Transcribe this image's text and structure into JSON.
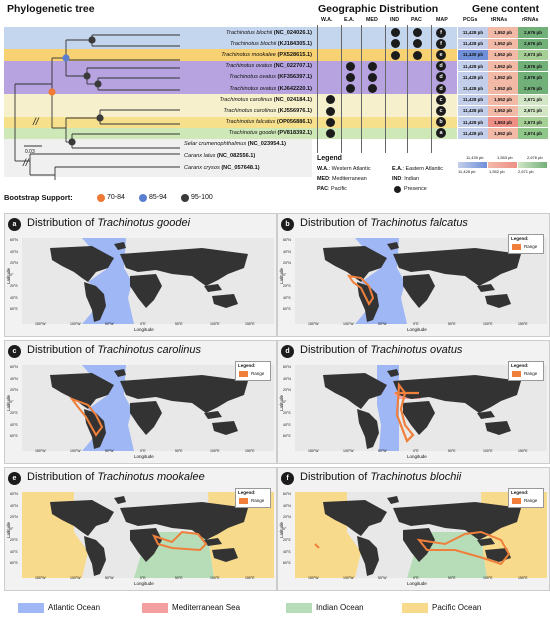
{
  "header": {
    "tree_title": "Phylogenetic tree",
    "geo_title": "Geographic Distribution",
    "gene_title": "Gene content"
  },
  "columns": {
    "wa": "W.A.",
    "ea": "E.A.",
    "med": "MED",
    "ind": "IND",
    "pac": "PAC",
    "map": "MAP",
    "pcgs": "PCGs",
    "trnas": "tRNAs",
    "rrnas": "rRNAs"
  },
  "taxa": [
    {
      "name": "Trachinotus blochii",
      "acc": "(NC_024026.1)",
      "band": "#c4d5ee",
      "pcgs": "11,428 pb",
      "pcg_color": "#c3cfea",
      "trnas": "1,552 pb",
      "trna_color": "#f3b9a7",
      "rrnas": "2,676 pb",
      "rrna_color": "#72b07a",
      "wa": false,
      "ea": false,
      "med": false,
      "ind": true,
      "pac": true,
      "map": "f"
    },
    {
      "name": "Trachinotus blochii",
      "acc": "(KJ184305.1)",
      "band": "#c4d5ee",
      "pcgs": "11,428 pb",
      "pcg_color": "#c3cfea",
      "trnas": "1,552 pb",
      "trna_color": "#f3b9a7",
      "rrnas": "2,676 pb",
      "rrna_color": "#72b07a",
      "wa": false,
      "ea": false,
      "med": false,
      "ind": true,
      "pac": true,
      "map": "f"
    },
    {
      "name": "Trachinotus mookalee",
      "acc": "(PX528615.1)",
      "band": "#f7d172",
      "pcgs": "11,430 pb",
      "pcg_color": "#6f8fd8",
      "trnas": "1,552 pb",
      "trna_color": "#f3b9a7",
      "rrnas": "2,673 pb",
      "rrna_color": "#a6cf95",
      "wa": false,
      "ea": false,
      "med": false,
      "ind": true,
      "pac": true,
      "map": "e"
    },
    {
      "name": "Trachinotus ovatus",
      "acc": "(NC_022707.1)",
      "band": "#b6a3e0",
      "pcgs": "11,428 pb",
      "pcg_color": "#c3cfea",
      "trnas": "1,552 pb",
      "trna_color": "#f3b9a7",
      "rrnas": "2,676 pb",
      "rrna_color": "#72b07a",
      "wa": false,
      "ea": true,
      "med": true,
      "ind": false,
      "pac": false,
      "map": "d"
    },
    {
      "name": "Trachinotus ovatus",
      "acc": "(KF356397.1)",
      "band": "#b6a3e0",
      "pcgs": "11,428 pb",
      "pcg_color": "#c3cfea",
      "trnas": "1,552 pb",
      "trna_color": "#f3b9a7",
      "rrnas": "2,676 pb",
      "rrna_color": "#72b07a",
      "wa": false,
      "ea": true,
      "med": true,
      "ind": false,
      "pac": false,
      "map": "d"
    },
    {
      "name": "Trachinotus ovatus",
      "acc": "(KJ642220.1)",
      "band": "#b6a3e0",
      "pcgs": "11,428 pb",
      "pcg_color": "#c3cfea",
      "trnas": "1,552 pb",
      "trna_color": "#f3b9a7",
      "rrnas": "2,676 pb",
      "rrna_color": "#72b07a",
      "wa": false,
      "ea": true,
      "med": true,
      "ind": false,
      "pac": false,
      "map": "d"
    },
    {
      "name": "Trachinotus carolinus",
      "acc": "(NC_024184.1)",
      "band": "#f7f0cc",
      "pcgs": "11,428 pb",
      "pcg_color": "#c3cfea",
      "trnas": "1,552 pb",
      "trna_color": "#f3b9a7",
      "rrnas": "2,671 pb",
      "rrna_color": "#d2e6c5",
      "wa": true,
      "ea": false,
      "med": false,
      "ind": false,
      "pac": false,
      "map": "c"
    },
    {
      "name": "Trachinotus carolinus",
      "acc": "(KJ556976.1)",
      "band": "#f7f0cc",
      "pcgs": "11,428 pb",
      "pcg_color": "#c3cfea",
      "trnas": "1,552 pb",
      "trna_color": "#f3b9a7",
      "rrnas": "2,671 pb",
      "rrna_color": "#d2e6c5",
      "wa": true,
      "ea": false,
      "med": false,
      "ind": false,
      "pac": false,
      "map": "c"
    },
    {
      "name": "Trachinotus falcatus",
      "acc": "(OP056886.1)",
      "band": "#f7e08c",
      "pcgs": "11,428 pb",
      "pcg_color": "#c3cfea",
      "trnas": "1,553 pb",
      "trna_color": "#ee8f86",
      "rrnas": "2,673 pb",
      "rrna_color": "#a6cf95",
      "wa": true,
      "ea": false,
      "med": false,
      "ind": false,
      "pac": false,
      "map": "b"
    },
    {
      "name": "Trachinotus goodei",
      "acc": "(PV818392.1)",
      "band": "#cfe8b8",
      "pcgs": "11,428 pb",
      "pcg_color": "#c3cfea",
      "trnas": "1,552 pb",
      "trna_color": "#f3b9a7",
      "rrnas": "2,674 pb",
      "rrna_color": "#8fc68a",
      "wa": true,
      "ea": false,
      "med": false,
      "ind": false,
      "pac": false,
      "map": "a"
    }
  ],
  "outgroups": [
    {
      "name": "Selar crumenophthalmus",
      "acc": "(NC_023954.1)"
    },
    {
      "name": "Caranx latus",
      "acc": "(NC_082556.1)"
    },
    {
      "name": "Caranx crysos",
      "acc": "(NC_057648.1)"
    }
  ],
  "scale": "0.03",
  "legend": {
    "title": "Legend",
    "wa": "W.A.",
    "wa_desc": ": Western Atlantic",
    "ea": "E.A.",
    "ea_desc": ": Eastern Atlantic",
    "med": "MED",
    "med_desc": ": Mediterranean",
    "ind": "IND",
    "ind_desc": ": Indian",
    "pac": "PAC",
    "pac_desc": ": Pacific",
    "presence": "Presence"
  },
  "bootstrap": {
    "label": "Bootstrap Support:",
    "items": [
      {
        "label": "70-84",
        "color": "#ee7a35"
      },
      {
        "label": "85-94",
        "color": "#5b7fd0"
      },
      {
        "label": "95-100",
        "color": "#3a3a3a"
      }
    ]
  },
  "gene_scale": {
    "pcg_high": "11,430 pb",
    "pcg_low": "11,428 pb",
    "trna_high": "1,553 pb",
    "trna_low": "1,552 pb",
    "rrna_high": "2,676 pb",
    "rrna_low": "2,671 pb"
  },
  "panels": [
    {
      "letter": "a",
      "title": "Distribution of ",
      "species": "Trachinotus goodei",
      "has_legend": false,
      "oceans": [
        "atlantic"
      ],
      "range": false
    },
    {
      "letter": "b",
      "title": "Distribution of ",
      "species": "Trachinotus falcatus",
      "has_legend": true,
      "oceans": [
        "atlantic"
      ],
      "range": true
    },
    {
      "letter": "c",
      "title": "Distribution of ",
      "species": "Trachinotus carolinus",
      "has_legend": true,
      "oceans": [
        "atlantic"
      ],
      "range": true
    },
    {
      "letter": "d",
      "title": "Distribution of ",
      "species": "Trachinotus ovatus",
      "has_legend": true,
      "oceans": [
        "atlantic_east",
        "mediterranean"
      ],
      "range": true
    },
    {
      "letter": "e",
      "title": "Distribution of ",
      "species": "Trachinotus mookalee",
      "has_legend": true,
      "oceans": [
        "pacific",
        "indian"
      ],
      "range": true
    },
    {
      "letter": "f",
      "title": "Distribution of ",
      "species": "Trachinotus blochii",
      "has_legend": true,
      "oceans": [
        "pacific",
        "indian"
      ],
      "range": true
    }
  ],
  "map_axes": {
    "xlabel": "Longitude",
    "ylabel": "Latitude",
    "legend_title": "Legend:",
    "legend_item": "Range",
    "xticks": [
      "150°W",
      "100°W",
      "50°W",
      "0°E",
      "50°E",
      "100°E",
      "150°E"
    ],
    "yticks": [
      "80°N",
      "60°N",
      "40°N",
      "20°N",
      "0°",
      "20°S",
      "40°S",
      "60°S",
      "80°S"
    ]
  },
  "bottom_legend": [
    {
      "label": "Atlantic Ocean",
      "color": "#9fb7f5"
    },
    {
      "label": "Mediterranean Sea",
      "color": "#f4a0a0"
    },
    {
      "label": "Indian Ocean",
      "color": "#b7ddb8"
    },
    {
      "label": "Pacific Ocean",
      "color": "#f8da8c"
    }
  ]
}
